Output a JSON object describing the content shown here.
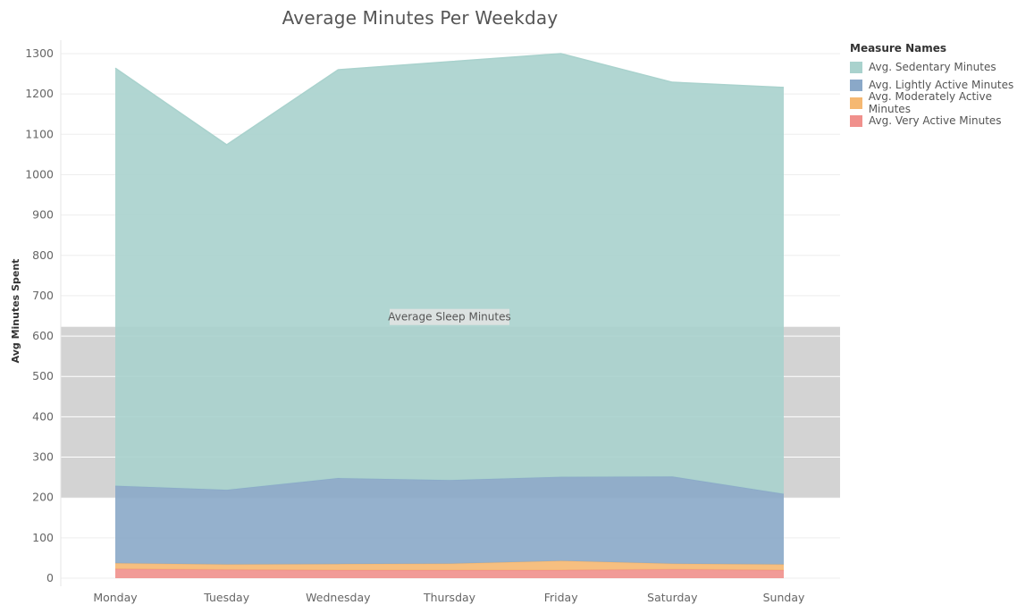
{
  "chart_data": {
    "type": "area",
    "stacked": true,
    "title": "Average Minutes Per Weekday",
    "ylabel": "Avg Minutes Spent",
    "xlabel": "",
    "categories": [
      "Monday",
      "Tuesday",
      "Wednesday",
      "Thursday",
      "Friday",
      "Saturday",
      "Sunday"
    ],
    "ylim": [
      0,
      1300
    ],
    "yticks": [
      0,
      100,
      200,
      300,
      400,
      500,
      600,
      700,
      800,
      900,
      1000,
      1100,
      1200,
      1300
    ],
    "grid": true,
    "legend_title": "Measure Names",
    "legend_position": "right",
    "series": [
      {
        "name": "Avg. Very Active Minutes",
        "color": "#f0908c",
        "values": [
          23,
          21,
          20,
          20,
          20,
          22,
          20
        ]
      },
      {
        "name": "Avg. Moderately Active Minutes",
        "color": "#f5b872",
        "values": [
          14,
          13,
          15,
          16,
          23,
          14,
          14
        ]
      },
      {
        "name": "Avg. Lightly Active Minutes",
        "color": "#8aa8c8",
        "values": [
          192,
          185,
          213,
          207,
          208,
          216,
          175
        ]
      },
      {
        "name": "Avg. Sedentary Minutes",
        "color": "#a9d2cd",
        "values": [
          1035,
          855,
          1012,
          1037,
          1049,
          977,
          1007
        ]
      }
    ],
    "reference_band": {
      "label": "Average Sleep Minutes",
      "from": 200,
      "to": 623,
      "color": "#d3d3d3"
    }
  }
}
